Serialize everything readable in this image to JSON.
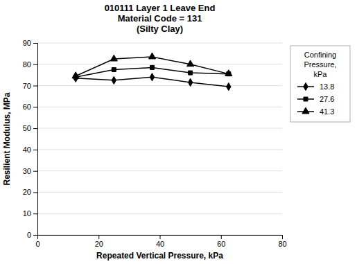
{
  "chart_data": {
    "type": "line",
    "title": [
      "010111 Layer 1 Leave End",
      "Material Code = 131",
      "(Silty Clay)"
    ],
    "x_label": "Repeated Vertical Pressure, kPa",
    "y_label": "Resilient Modulus, MPa",
    "legend_title": [
      "Confining",
      "Pressure,",
      "kPa"
    ],
    "legend": "right",
    "grid": "y",
    "xlim": [
      0,
      80
    ],
    "ylim": [
      0,
      90
    ],
    "xticks": [
      0,
      20,
      40,
      60,
      80
    ],
    "yticks": [
      0,
      10,
      20,
      30,
      40,
      50,
      60,
      70,
      80,
      90
    ],
    "x": [
      12.5,
      25,
      37.5,
      50,
      62.5
    ],
    "series": [
      {
        "name": "13.8",
        "color": "#000000",
        "marker": "diamond",
        "values": [
          73.5,
          72.5,
          74.0,
          71.5,
          69.5
        ]
      },
      {
        "name": "27.6",
        "color": "#000000",
        "marker": "square",
        "values": [
          74.0,
          77.5,
          78.5,
          76.0,
          75.5
        ]
      },
      {
        "name": "41.3",
        "color": "#000000",
        "marker": "triangle",
        "values": [
          74.5,
          82.5,
          83.5,
          80.0,
          75.5
        ]
      }
    ]
  }
}
